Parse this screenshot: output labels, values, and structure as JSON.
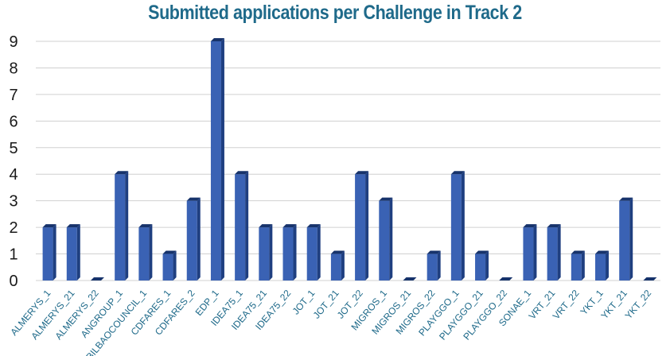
{
  "chart_data": {
    "type": "bar",
    "title": "Submitted applications per Challenge in Track 2",
    "xlabel": "",
    "ylabel": "",
    "ylim": [
      0,
      9
    ],
    "grid": true,
    "categories": [
      "ALMERYS_1",
      "ALMERYS_21",
      "ALMERYS_22",
      "ANGROUP_1",
      "BILBAOCOUNCIL_1",
      "CDFARES_1",
      "CDFARES_2",
      "EDP_1",
      "IDEA75_1",
      "IDEA75_21",
      "IDEA75_22",
      "JOT_1",
      "JOT_21",
      "JOT_22",
      "MIGROS_1",
      "MIGROS_21",
      "MIGROS_22",
      "PLAYGGO_1",
      "PLAYGGO_21",
      "PLAYGGO_22",
      "SONAE_1",
      "VRT_21",
      "VRT_22",
      "YKT_1",
      "YKT_21",
      "YKT_22"
    ],
    "values": [
      2,
      2,
      0,
      4,
      2,
      1,
      3,
      9,
      4,
      2,
      2,
      2,
      1,
      4,
      3,
      0,
      1,
      4,
      1,
      0,
      2,
      2,
      1,
      1,
      3,
      0
    ],
    "bar_color": "#3a62b4"
  }
}
